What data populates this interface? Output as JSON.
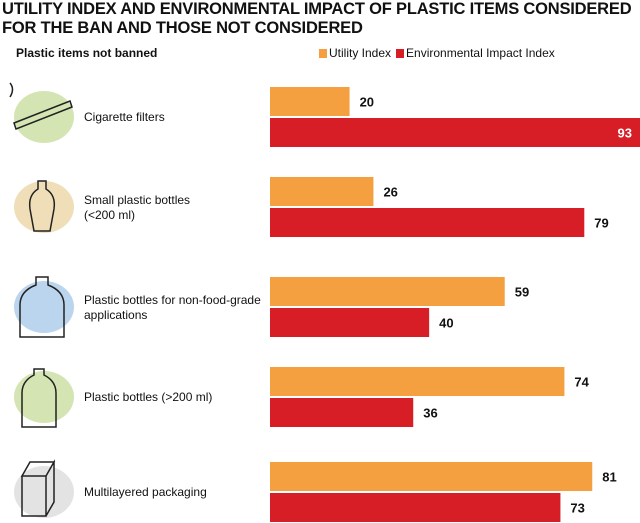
{
  "chart_data": {
    "type": "bar",
    "orientation": "horizontal",
    "title": "UTILITY INDEX AND ENVIRONMENTAL IMPACT OF PLASTIC ITEMS CONSIDERED FOR THE BAN AND THOSE NOT CONSIDERED",
    "subtitle": "Plastic items not banned",
    "categories": [
      "Cigarette filters",
      "Small plastic bottles\n(<200 ml)",
      "Plastic bottles for non-food-grade\napplications",
      "Plastic bottles (>200 ml)",
      "Multilayered packaging"
    ],
    "series": [
      {
        "name": "Utility Index",
        "color": "#f5a040",
        "values": [
          20,
          26,
          59,
          74,
          81
        ]
      },
      {
        "name": "Environmental Impact Index",
        "color": "#d71e26",
        "values": [
          93,
          79,
          40,
          36,
          73
        ]
      }
    ],
    "xlim": [
      0,
      93
    ],
    "grid": false,
    "legend": "top-right",
    "data_labels": true,
    "icons": [
      "cigarette-icon",
      "small-bottle-icon",
      "large-jug-icon",
      "handled-bottle-icon",
      "carton-icon"
    ]
  }
}
